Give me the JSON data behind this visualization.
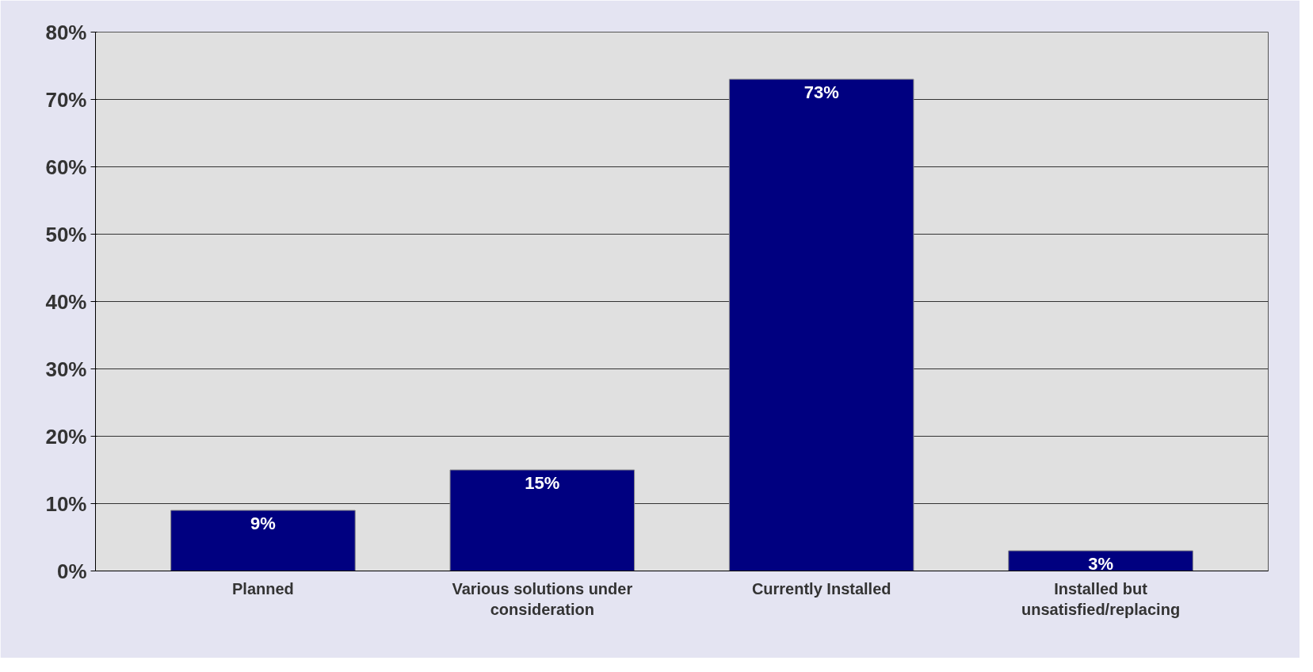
{
  "chart_data": {
    "type": "bar",
    "categories": [
      "Planned",
      "Various solutions under consideration",
      "Currently Installed",
      "Installed but unsatisfied/replacing"
    ],
    "values": [
      9,
      15,
      73,
      3
    ],
    "value_labels": [
      "9%",
      "15%",
      "73%",
      "3%"
    ],
    "color": "#000080",
    "ylim": [
      0,
      80
    ],
    "yticks": [
      {
        "value": 0,
        "label": "0%"
      },
      {
        "value": 10,
        "label": "10%"
      },
      {
        "value": 20,
        "label": "20%"
      },
      {
        "value": 30,
        "label": "30%"
      },
      {
        "value": 40,
        "label": "40%"
      },
      {
        "value": 50,
        "label": "50%"
      },
      {
        "value": 60,
        "label": "60%"
      },
      {
        "value": 70,
        "label": "70%"
      },
      {
        "value": 80,
        "label": "80%"
      }
    ],
    "grid": "y"
  }
}
